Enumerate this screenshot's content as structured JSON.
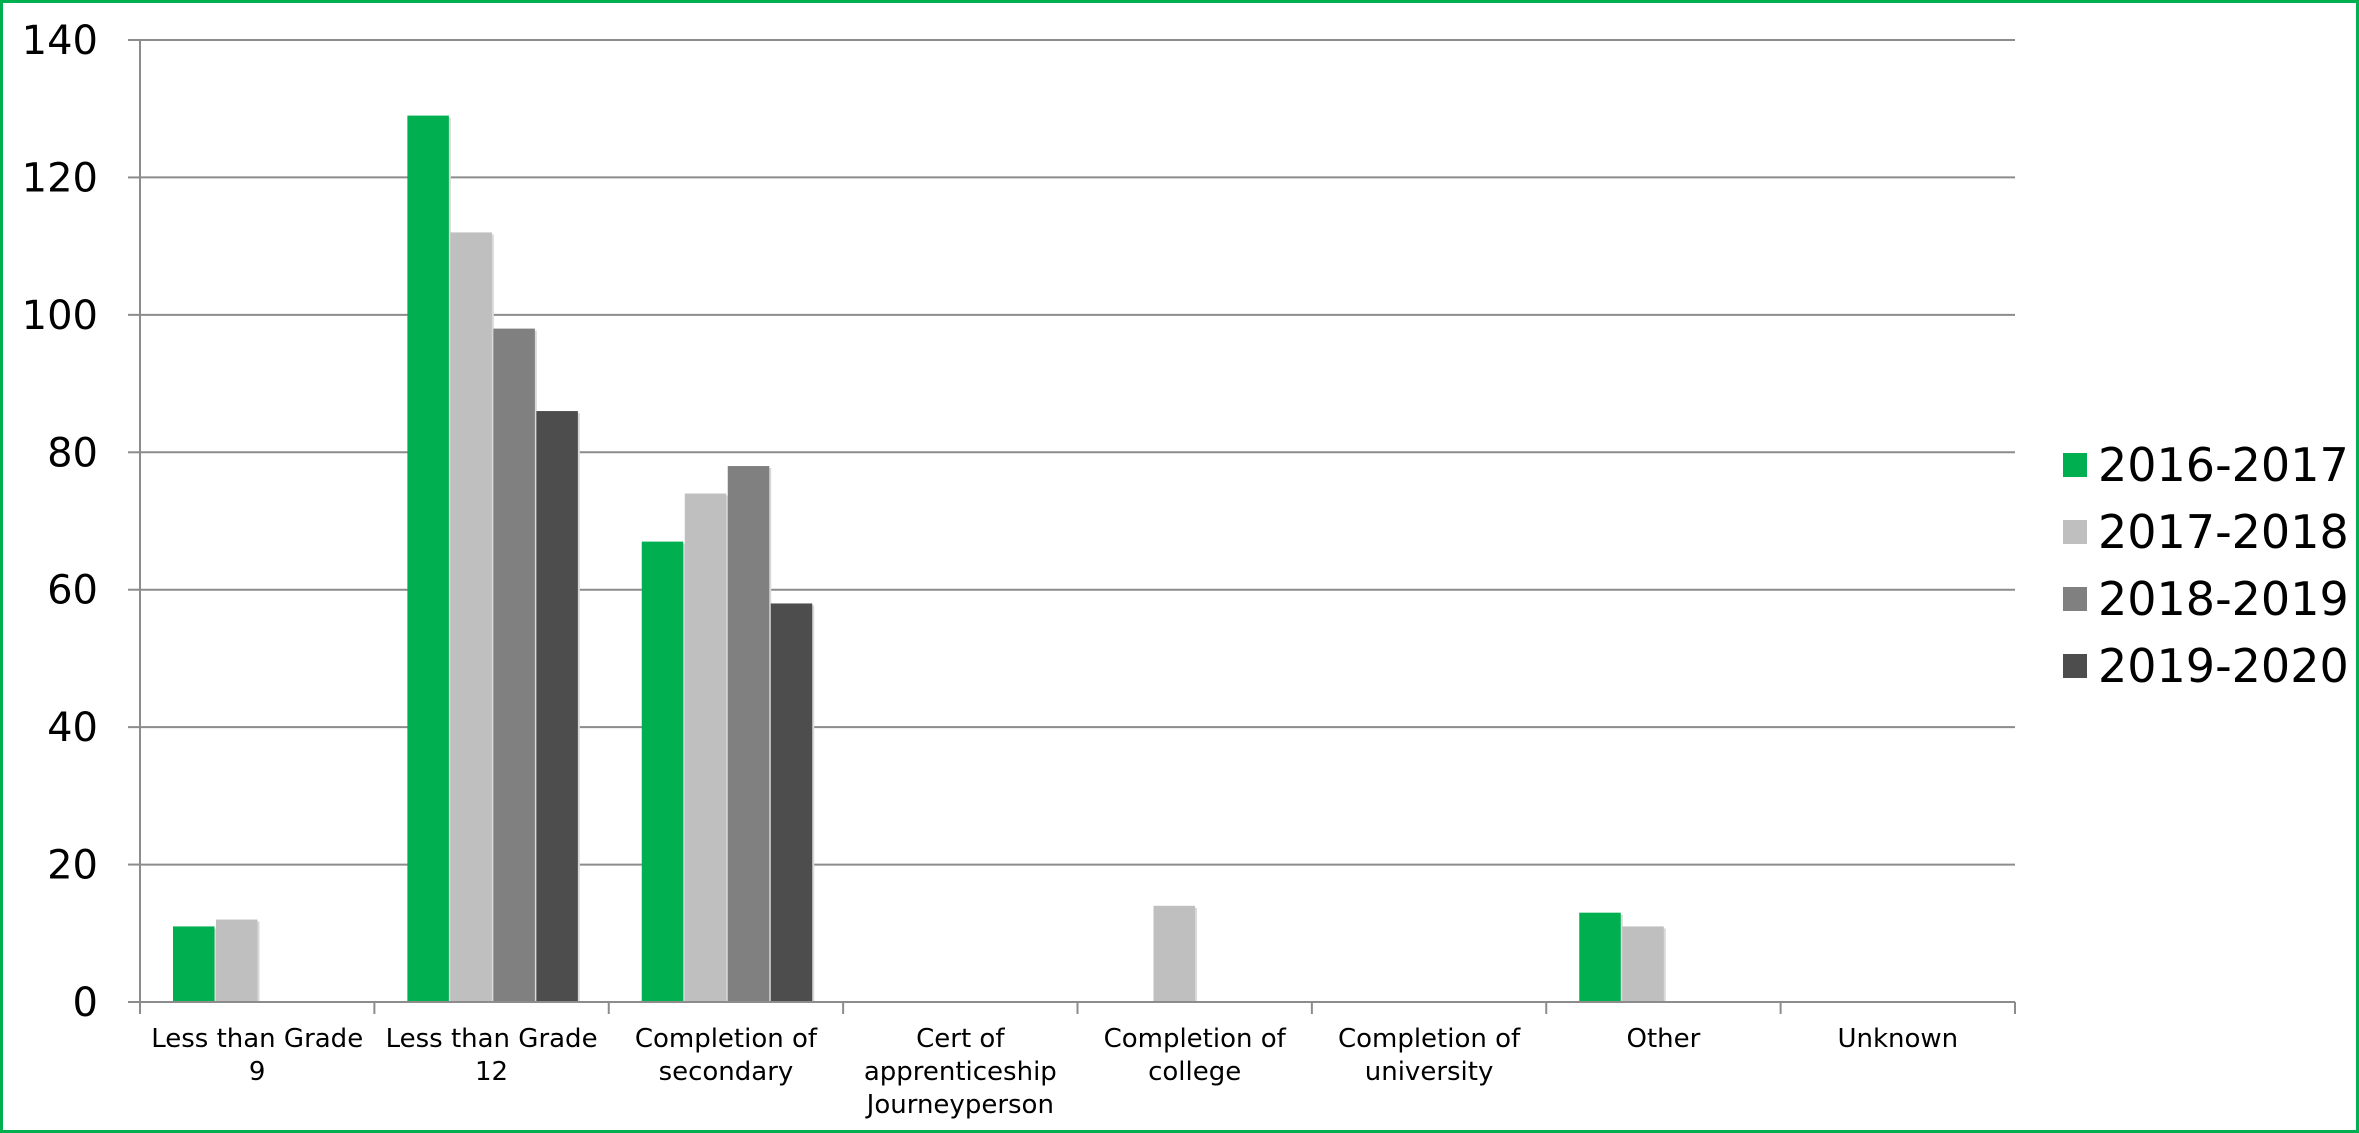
{
  "chart_data": {
    "type": "bar",
    "categories": [
      [
        "Less than Grade",
        "9"
      ],
      [
        "Less than Grade",
        "12"
      ],
      [
        "Completion of",
        "secondary"
      ],
      [
        "Cert of",
        "apprenticeship",
        "Journeyperson"
      ],
      [
        "Completion of",
        "college"
      ],
      [
        "Completion of",
        "university"
      ],
      [
        "Other"
      ],
      [
        "Unknown"
      ]
    ],
    "series": [
      {
        "name": "2016-2017",
        "color": "#00B050",
        "values": [
          11,
          129,
          67,
          null,
          null,
          null,
          13,
          null
        ]
      },
      {
        "name": "2017-2018",
        "color": "#BFBFBF",
        "values": [
          12,
          112,
          74,
          null,
          14,
          null,
          11,
          null
        ]
      },
      {
        "name": "2018-2019",
        "color": "#808080",
        "values": [
          null,
          98,
          78,
          null,
          null,
          null,
          null,
          null
        ]
      },
      {
        "name": "2019-2020",
        "color": "#4D4D4D",
        "values": [
          null,
          86,
          58,
          null,
          null,
          null,
          null,
          null
        ]
      }
    ],
    "ylim": [
      0,
      140
    ],
    "yticks": [
      0,
      20,
      40,
      60,
      80,
      100,
      120,
      140
    ],
    "grid": true,
    "legend_position": "right"
  }
}
